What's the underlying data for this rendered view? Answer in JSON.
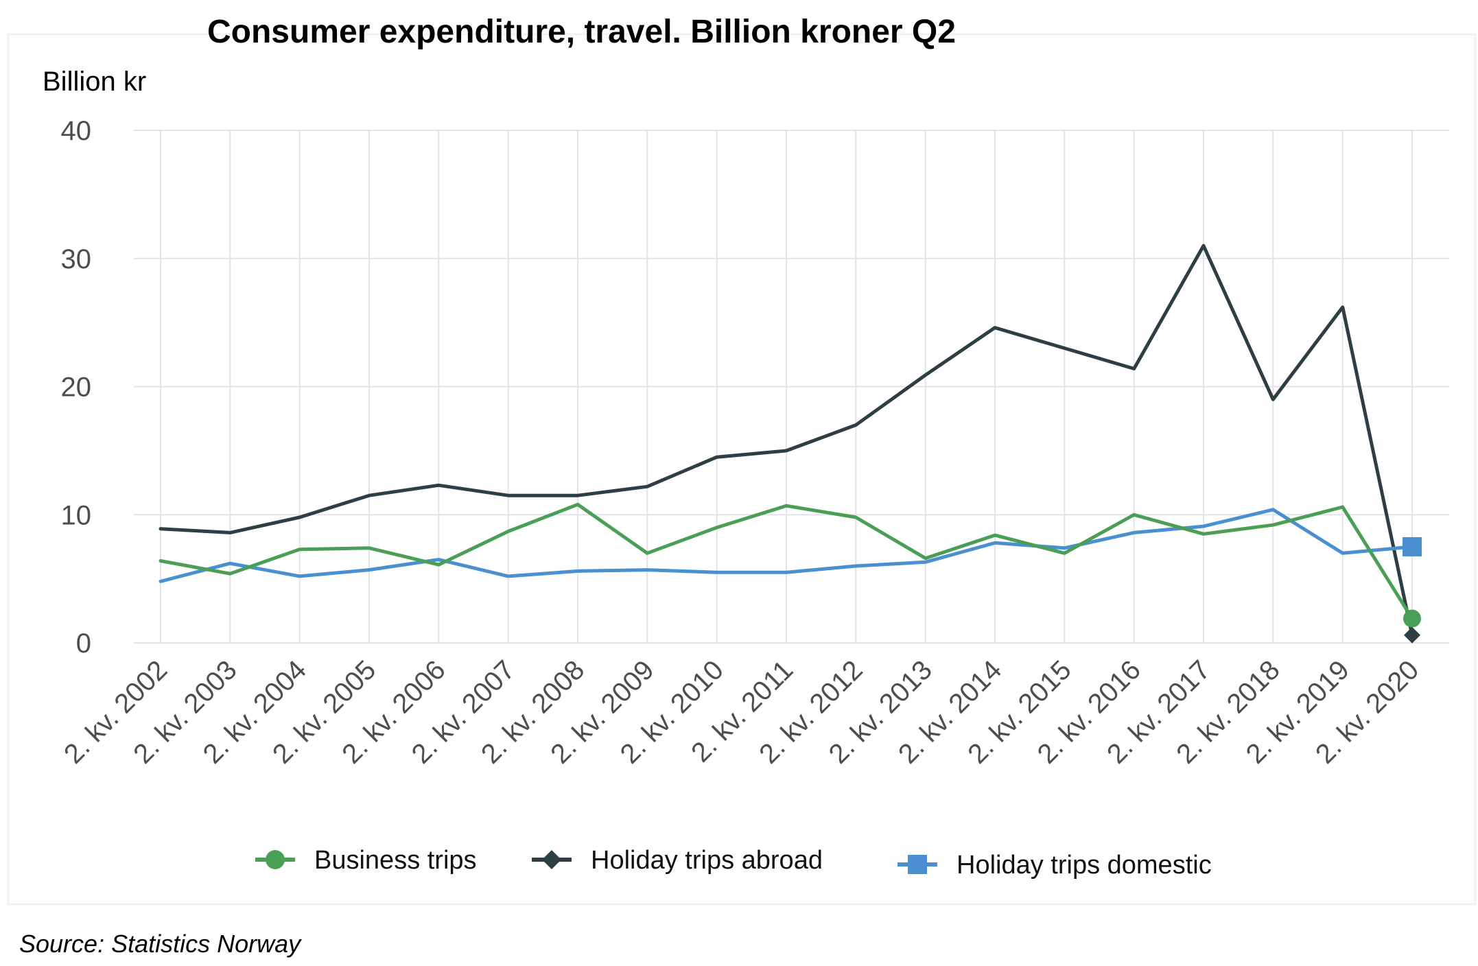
{
  "chart_data": {
    "type": "line",
    "title": "Consumer expenditure, travel. Billion kroner Q2",
    "unit_label": "Billion kr",
    "xlabel": "",
    "ylabel": "",
    "ylim": [
      0,
      40
    ],
    "y_ticks": [
      0,
      10,
      20,
      30,
      40
    ],
    "grid": true,
    "legend_position": "bottom",
    "categories": [
      "2. kv. 2002",
      "2. kv. 2003",
      "2. kv. 2004",
      "2. kv. 2005",
      "2. kv. 2006",
      "2. kv. 2007",
      "2. kv. 2008",
      "2. kv. 2009",
      "2. kv. 2010",
      "2. kv. 2011",
      "2. kv. 2012",
      "2. kv. 2013",
      "2. kv. 2014",
      "2. kv. 2015",
      "2. kv. 2016",
      "2. kv. 2017",
      "2. kv. 2018",
      "2. kv. 2019",
      "2. kv. 2020"
    ],
    "series": [
      {
        "name": "Business trips",
        "color": "#4a9e55",
        "marker": "circle",
        "values": [
          6.4,
          5.4,
          7.3,
          7.4,
          6.1,
          8.7,
          10.8,
          7.0,
          9.0,
          10.7,
          9.8,
          6.6,
          8.4,
          7.0,
          10.0,
          8.5,
          9.2,
          10.6,
          1.9
        ]
      },
      {
        "name": "Holiday trips abroad",
        "color": "#2e3e45",
        "marker": "diamond",
        "values": [
          8.9,
          8.6,
          9.8,
          11.5,
          12.3,
          11.5,
          11.5,
          12.2,
          14.5,
          15.0,
          17.0,
          20.9,
          24.6,
          23.0,
          21.4,
          31.0,
          19.0,
          26.2,
          0.6
        ]
      },
      {
        "name": "Holiday trips domestic",
        "color": "#4a90d0",
        "marker": "square",
        "values": [
          4.8,
          6.2,
          5.2,
          5.7,
          6.5,
          5.2,
          5.6,
          5.7,
          5.5,
          5.5,
          6.0,
          6.3,
          7.8,
          7.4,
          8.6,
          9.1,
          10.4,
          7.0,
          7.5
        ]
      }
    ]
  },
  "source": "Source: Statistics Norway"
}
